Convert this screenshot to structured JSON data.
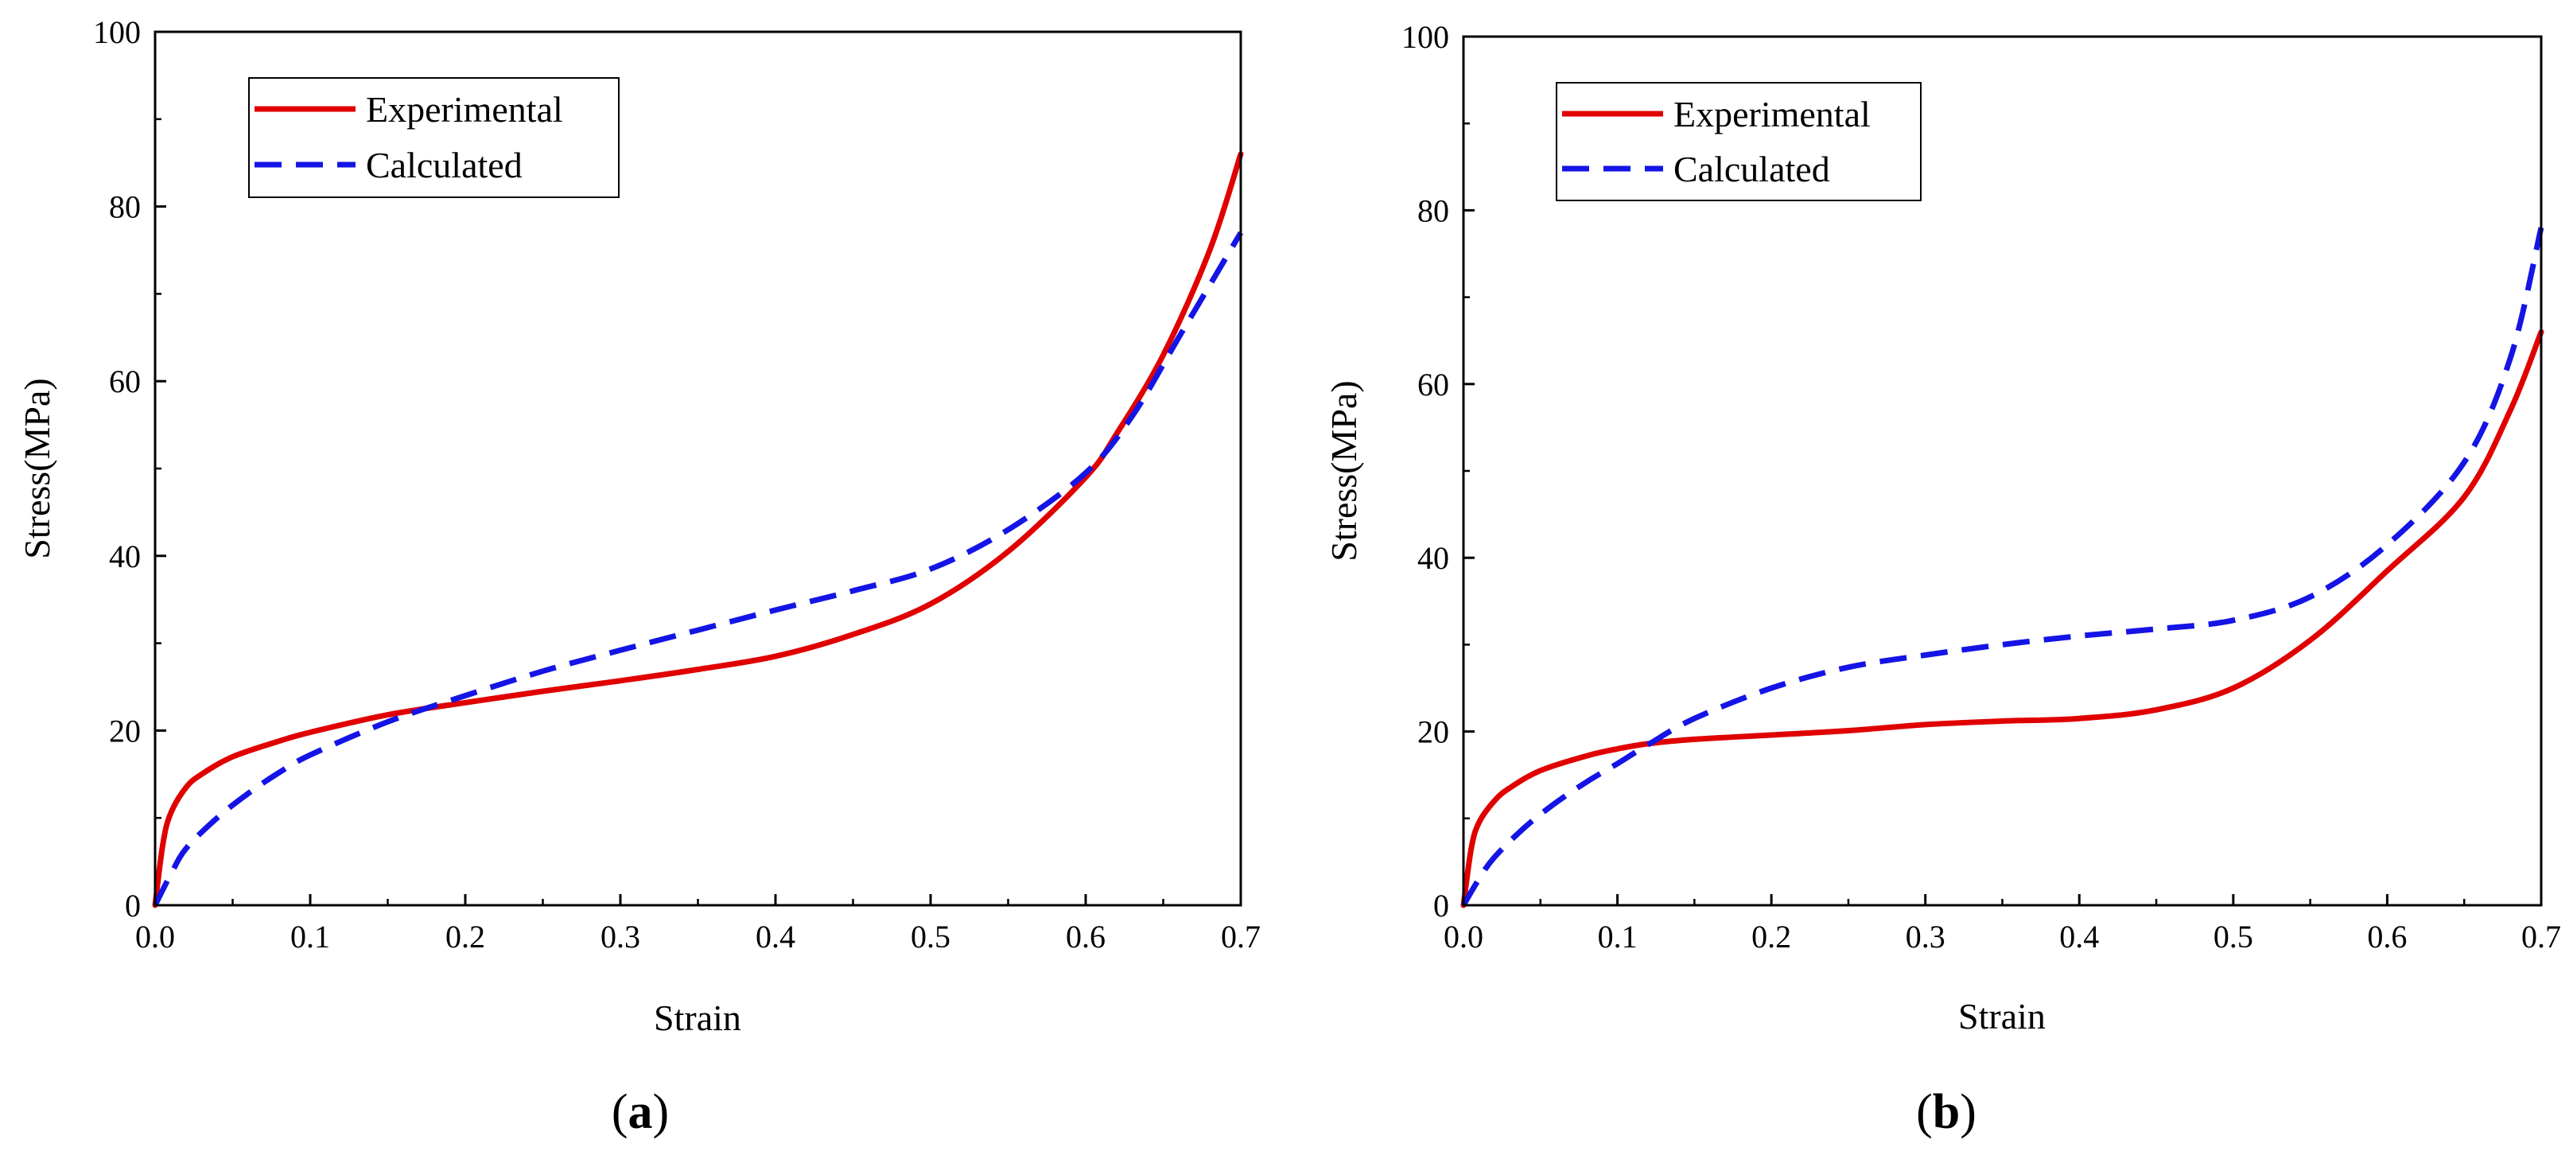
{
  "chart_data": [
    {
      "type": "line",
      "panel_label_open": "(",
      "panel_label": "a",
      "panel_label_close": ")",
      "xlabel": "Strain",
      "ylabel": "Stress(MPa)",
      "xlim": [
        0,
        0.7
      ],
      "ylim": [
        0,
        100
      ],
      "xticks": [
        0.0,
        0.1,
        0.2,
        0.3,
        0.4,
        0.5,
        0.6,
        0.7
      ],
      "xtick_labels": [
        "0.0",
        "0.1",
        "0.2",
        "0.3",
        "0.4",
        "0.5",
        "0.6",
        "0.7"
      ],
      "yticks": [
        0,
        20,
        40,
        60,
        80,
        100
      ],
      "ytick_labels": [
        "0",
        "20",
        "40",
        "60",
        "80",
        "100"
      ],
      "legend_position": "top-left",
      "series": [
        {
          "name": "Experimental",
          "color": "#e00000",
          "style": "solid",
          "x": [
            0,
            0.005,
            0.01,
            0.02,
            0.03,
            0.05,
            0.08,
            0.1,
            0.15,
            0.2,
            0.25,
            0.3,
            0.35,
            0.4,
            0.45,
            0.5,
            0.55,
            0.6,
            0.62,
            0.65,
            0.68,
            0.7
          ],
          "y": [
            0,
            7,
            10.5,
            13.5,
            15,
            17,
            18.8,
            19.8,
            21.8,
            23.2,
            24.5,
            25.7,
            27,
            28.5,
            31,
            34.5,
            40.5,
            49,
            54,
            63,
            75,
            86
          ]
        },
        {
          "name": "Calculated",
          "color": "#1414e6",
          "style": "dashed",
          "x": [
            0,
            0.01,
            0.02,
            0.04,
            0.06,
            0.08,
            0.1,
            0.15,
            0.2,
            0.25,
            0.3,
            0.35,
            0.4,
            0.45,
            0.5,
            0.55,
            0.6,
            0.63,
            0.66,
            0.7
          ],
          "y": [
            0,
            3.5,
            6.5,
            10,
            12.8,
            15.2,
            17.2,
            21,
            24,
            26.8,
            29.2,
            31.5,
            33.8,
            36,
            38.5,
            43,
            49.5,
            56,
            65,
            77
          ]
        }
      ]
    },
    {
      "type": "line",
      "panel_label_open": "(",
      "panel_label": "b",
      "panel_label_close": ")",
      "xlabel": "Strain",
      "ylabel": "Stress(MPa)",
      "xlim": [
        0,
        0.7
      ],
      "ylim": [
        0,
        100
      ],
      "xticks": [
        0.0,
        0.1,
        0.2,
        0.3,
        0.4,
        0.5,
        0.6,
        0.7
      ],
      "xtick_labels": [
        "0.0",
        "0.1",
        "0.2",
        "0.3",
        "0.4",
        "0.5",
        "0.6",
        "0.7"
      ],
      "yticks": [
        0,
        20,
        40,
        60,
        80,
        100
      ],
      "ytick_labels": [
        "0",
        "20",
        "40",
        "60",
        "80",
        "100"
      ],
      "legend_position": "top-left",
      "series": [
        {
          "name": "Experimental",
          "color": "#e00000",
          "style": "solid",
          "x": [
            0,
            0.005,
            0.01,
            0.02,
            0.03,
            0.05,
            0.08,
            0.1,
            0.12,
            0.15,
            0.2,
            0.25,
            0.3,
            0.35,
            0.4,
            0.45,
            0.5,
            0.55,
            0.6,
            0.65,
            0.68,
            0.7
          ],
          "y": [
            0,
            6.5,
            9.5,
            12,
            13.5,
            15.5,
            17.2,
            18,
            18.6,
            19.1,
            19.6,
            20.1,
            20.8,
            21.2,
            21.5,
            22.5,
            25,
            30.5,
            38.5,
            47,
            57,
            66
          ]
        },
        {
          "name": "Calculated",
          "color": "#1414e6",
          "style": "dashed",
          "x": [
            0,
            0.01,
            0.02,
            0.04,
            0.06,
            0.08,
            0.1,
            0.12,
            0.15,
            0.2,
            0.25,
            0.3,
            0.35,
            0.4,
            0.45,
            0.5,
            0.55,
            0.6,
            0.65,
            0.68,
            0.7
          ],
          "y": [
            0,
            3,
            5.5,
            9,
            11.8,
            14.2,
            16.3,
            18.5,
            21.5,
            25,
            27.4,
            28.8,
            30,
            31,
            31.8,
            32.8,
            35.5,
            41.5,
            51,
            63,
            78
          ]
        }
      ]
    }
  ]
}
